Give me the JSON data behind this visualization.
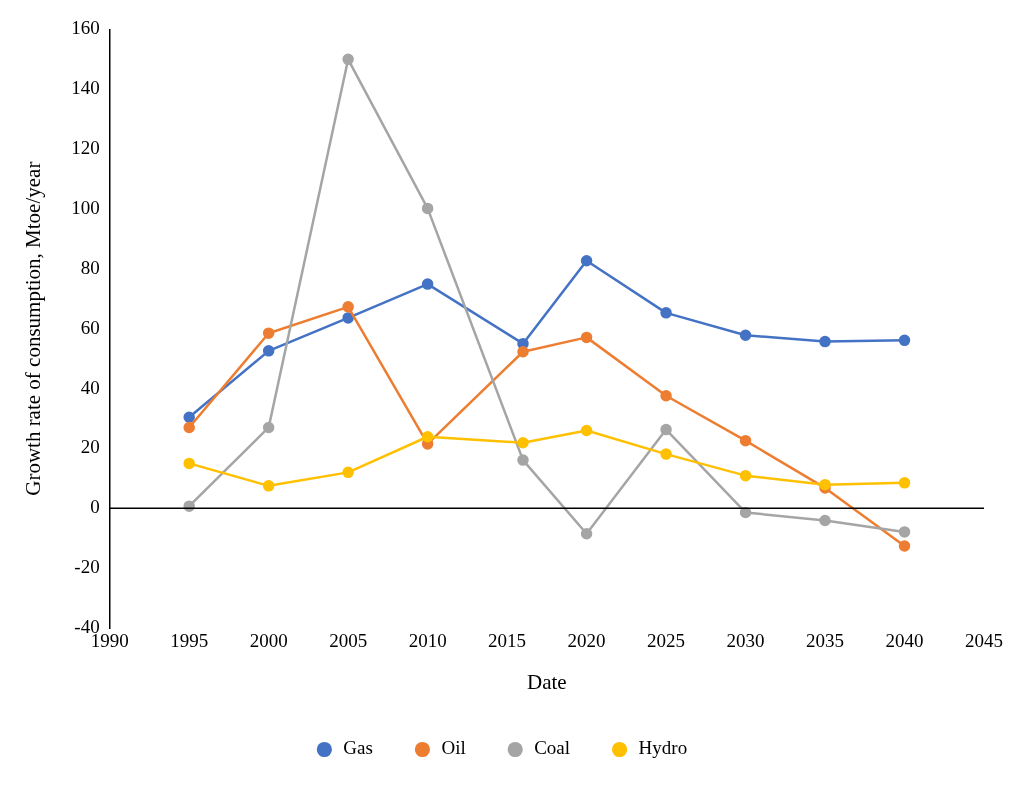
{
  "chart_data": {
    "type": "line",
    "xlabel": "Date",
    "ylabel": "Growth rate of consumption, Mtoe/year",
    "x": [
      1995,
      2000,
      2005,
      2010,
      2016,
      2020,
      2025,
      2030,
      2035,
      2040
    ],
    "series": [
      {
        "name": "Gas",
        "color": "#4472c4",
        "values": [
          30.4,
          52.6,
          63.6,
          74.9,
          55,
          82.7,
          65.3,
          57.8,
          55.7,
          56.1
        ]
      },
      {
        "name": "Oil",
        "color": "#ed7d31",
        "values": [
          27,
          58.5,
          67.3,
          21.5,
          52.3,
          57.1,
          37.6,
          22.6,
          6.8,
          -12.6
        ]
      },
      {
        "name": "Coal",
        "color": "#a5a5a5",
        "values": [
          0.7,
          27,
          150,
          100.2,
          16.1,
          -8.5,
          26.3,
          -1.4,
          -4.1,
          -7.9
        ]
      },
      {
        "name": "Hydro",
        "color": "#ffc000",
        "values": [
          15,
          7.5,
          12,
          23.9,
          21.9,
          26,
          18.1,
          10.9,
          7.9,
          8.5
        ]
      }
    ],
    "xlim": [
      1990,
      2045
    ],
    "xticks": [
      1990,
      1995,
      2000,
      2005,
      2010,
      2015,
      2020,
      2025,
      2030,
      2035,
      2040,
      2045
    ],
    "ylim": [
      -40,
      160
    ],
    "yticks": [
      -40,
      -20,
      0,
      20,
      40,
      60,
      80,
      100,
      120,
      140,
      160
    ],
    "ref_lines": [
      {
        "axis": "y",
        "value": 0,
        "color": "#000000",
        "line_style": "solid"
      }
    ],
    "grid": false,
    "legend": "bottom",
    "marker": "circle",
    "line_style": "solid"
  }
}
